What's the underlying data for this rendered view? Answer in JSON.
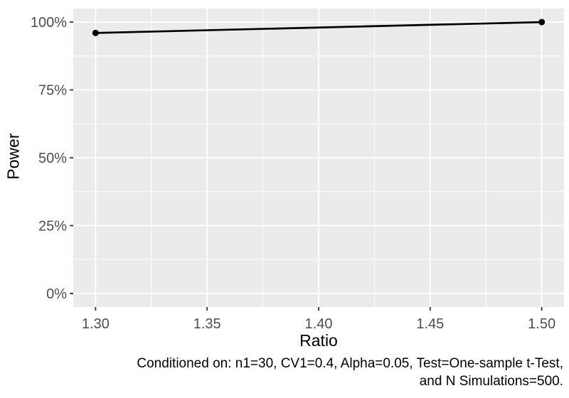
{
  "chart_data": {
    "type": "line",
    "title": "",
    "xlabel": "Ratio",
    "ylabel": "Power",
    "series": [
      {
        "name": "Power",
        "x": [
          1.3,
          1.5
        ],
        "y_percent": [
          96,
          100
        ]
      }
    ],
    "x_ticks": [
      1.3,
      1.35,
      1.4,
      1.45,
      1.5
    ],
    "x_tick_labels": [
      "1.30",
      "1.35",
      "1.40",
      "1.45",
      "1.50"
    ],
    "x_minor_ticks": [
      1.325,
      1.375,
      1.425,
      1.475
    ],
    "y_ticks": [
      0,
      25,
      50,
      75,
      100
    ],
    "y_tick_labels": [
      "0%",
      "25%",
      "50%",
      "75%",
      "100%"
    ],
    "y_minor_ticks": [
      12.5,
      37.5,
      62.5,
      87.5
    ],
    "xlim": [
      1.29,
      1.51
    ],
    "ylim_percent": [
      -5,
      105
    ],
    "grid": "major+minor",
    "legend_position": "none",
    "caption_lines": [
      "Conditioned on: n1=30, CV1=0.4, Alpha=0.05, Test=One-sample t-Test,",
      "and N Simulations=500."
    ],
    "style": {
      "page_bg": "#FFFFFF",
      "panel_bg": "#EBEBEB",
      "grid_color": "#FFFFFF",
      "line_color": "#000000",
      "point_color": "#000000",
      "tick_label_color": "#4D4D4D",
      "tick_mark_color": "#333333",
      "axis_title_color": "#000000",
      "caption_color": "#000000"
    }
  }
}
